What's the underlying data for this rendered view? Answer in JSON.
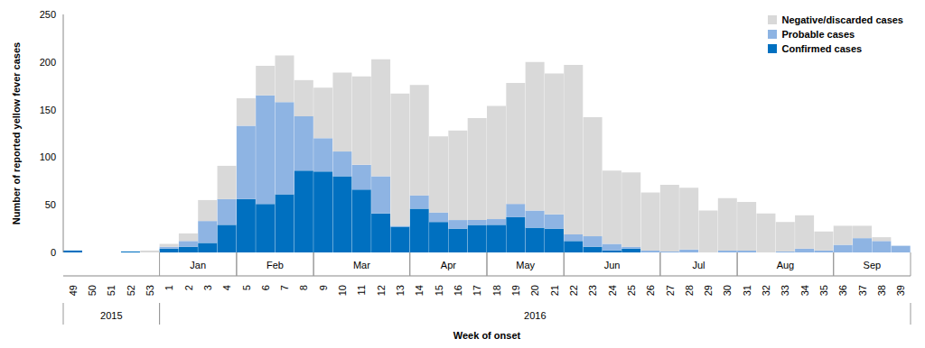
{
  "chart_data": {
    "type": "bar",
    "stacked": true,
    "grid": false,
    "legend": "upper right",
    "y_label": "Number of reported yellow fever cases",
    "x_label": "Week of onset",
    "categories": [
      "49",
      "50",
      "51",
      "52",
      "53",
      "1",
      "2",
      "3",
      "4",
      "5",
      "6",
      "7",
      "8",
      "9",
      "10",
      "11",
      "12",
      "13",
      "14",
      "15",
      "16",
      "17",
      "18",
      "19",
      "20",
      "21",
      "22",
      "23",
      "24",
      "25",
      "26",
      "27",
      "28",
      "29",
      "30",
      "31",
      "32",
      "33",
      "34",
      "35",
      "36",
      "37",
      "38",
      "39"
    ],
    "series": [
      {
        "name": "Confirmed cases",
        "color": "#0070c0",
        "values": [
          2,
          0,
          0,
          1,
          0,
          4,
          6,
          10,
          29,
          56,
          51,
          61,
          86,
          85,
          80,
          66,
          41,
          27,
          46,
          32,
          25,
          29,
          29,
          37,
          26,
          25,
          12,
          6,
          2,
          4,
          0,
          0,
          0,
          0,
          0,
          0,
          0,
          0,
          0,
          0,
          0,
          0,
          0,
          0
        ]
      },
      {
        "name": "Probable cases",
        "color": "#8eb4e3",
        "values": [
          0,
          0,
          0,
          0,
          0,
          2,
          6,
          23,
          27,
          77,
          114,
          97,
          57,
          35,
          26,
          26,
          39,
          1,
          14,
          10,
          9,
          5,
          6,
          14,
          18,
          15,
          7,
          11,
          7,
          2,
          2,
          1,
          3,
          0,
          2,
          2,
          0,
          1,
          4,
          2,
          8,
          15,
          12,
          7
        ]
      },
      {
        "name": "Negative/discarded cases",
        "color": "#d9d9d9",
        "values": [
          0,
          0,
          0,
          0,
          2,
          3,
          8,
          22,
          35,
          29,
          31,
          49,
          38,
          53,
          83,
          93,
          123,
          139,
          116,
          80,
          94,
          107,
          119,
          127,
          156,
          148,
          178,
          125,
          77,
          78,
          61,
          70,
          65,
          44,
          55,
          51,
          41,
          31,
          35,
          20,
          20,
          13,
          4,
          0
        ]
      }
    ],
    "ylim": [
      0,
      250
    ],
    "yticks": [
      0,
      50,
      100,
      150,
      200,
      250
    ],
    "month_groups": [
      {
        "label": "Jan",
        "first": "1",
        "last": "4"
      },
      {
        "label": "Feb",
        "first": "5",
        "last": "8"
      },
      {
        "label": "Mar",
        "first": "9",
        "last": "13"
      },
      {
        "label": "Apr",
        "first": "14",
        "last": "17"
      },
      {
        "label": "May",
        "first": "18",
        "last": "21"
      },
      {
        "label": "Jun",
        "first": "22",
        "last": "26"
      },
      {
        "label": "Jul",
        "first": "27",
        "last": "30"
      },
      {
        "label": "Aug",
        "first": "31",
        "last": "35"
      },
      {
        "label": "Sep",
        "first": "36",
        "last": "39"
      }
    ],
    "year_groups": [
      {
        "label": "2015",
        "first": "49",
        "last": "53"
      },
      {
        "label": "2016",
        "first": "1",
        "last": "39"
      }
    ]
  }
}
